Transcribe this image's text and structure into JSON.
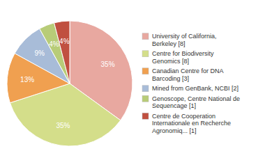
{
  "chart_data": {
    "type": "pie",
    "categories": [
      "University of California,\nBerkeley [8]",
      "Centre for Biodiversity\nGenomics [8]",
      "Canadian Centre for DNA\nBarcoding [3]",
      "Mined from GenBank, NCBI [2]",
      "Genoscope, Centre National de\nSequencage [1]",
      "Centre de Cooperation\nInternationale en Recherche\nAgronomiq... [1]"
    ],
    "values": [
      35,
      35,
      13,
      9,
      4,
      4
    ],
    "value_labels": [
      "35%",
      "35%",
      "13%",
      "9%",
      "4%",
      "4%"
    ],
    "colors": [
      "#e8a8a0",
      "#d4de8a",
      "#f0a050",
      "#a8bcd8",
      "#b8cc78",
      "#c05040"
    ],
    "data_labels": true,
    "legend": "right"
  }
}
